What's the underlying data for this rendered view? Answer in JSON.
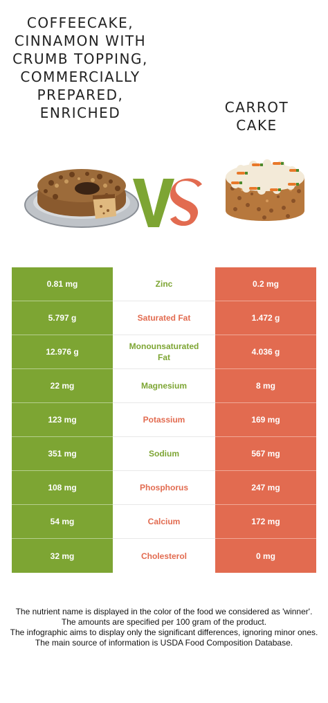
{
  "food_left": {
    "name": "Coffeecake, cinnamon with crumb topping, commercially prepared, enriched",
    "color": "#7da533"
  },
  "food_right": {
    "name": "Carrot cake",
    "color": "#e26b50"
  },
  "vs_label": "VS",
  "rows": [
    {
      "nutrient": "Zinc",
      "left": "0.81 mg",
      "right": "0.2 mg",
      "winner": "left"
    },
    {
      "nutrient": "Saturated Fat",
      "left": "5.797 g",
      "right": "1.472 g",
      "winner": "right"
    },
    {
      "nutrient": "Monounsaturated Fat",
      "left": "12.976 g",
      "right": "4.036 g",
      "winner": "left"
    },
    {
      "nutrient": "Magnesium",
      "left": "22 mg",
      "right": "8 mg",
      "winner": "left"
    },
    {
      "nutrient": "Potassium",
      "left": "123 mg",
      "right": "169 mg",
      "winner": "right"
    },
    {
      "nutrient": "Sodium",
      "left": "351 mg",
      "right": "567 mg",
      "winner": "left"
    },
    {
      "nutrient": "Phosphorus",
      "left": "108 mg",
      "right": "247 mg",
      "winner": "right"
    },
    {
      "nutrient": "Calcium",
      "left": "54 mg",
      "right": "172 mg",
      "winner": "right"
    },
    {
      "nutrient": "Cholesterol",
      "left": "32 mg",
      "right": "0 mg",
      "winner": "right"
    }
  ],
  "footer": {
    "line1": "The nutrient name is displayed in the color of the food we considered as 'winner'.",
    "line2": "The amounts are specified per 100 gram of the product.",
    "line3": "The infographic aims to display only the significant differences, ignoring minor ones.",
    "line4": "The main source of information is USDA Food Composition Database."
  }
}
